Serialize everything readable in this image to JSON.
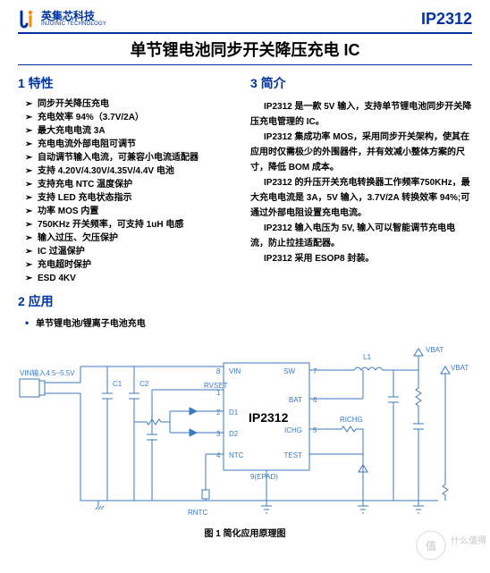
{
  "brand": {
    "cn": "英集芯科技",
    "en": "INJOINIC TECHNOLOGY",
    "color": "#0033a0"
  },
  "part_number": "IP2312",
  "title": "单节锂电池同步开关降压充电 IC",
  "sections": {
    "features_head": "1  特性",
    "applications_head": "2  应用",
    "intro_head": "3  简介"
  },
  "features": [
    "同步开关降压充电",
    "充电效率 94%（3.7V/2A）",
    "最大充电电流 3A",
    "充电电流外部电阻可调节",
    "自动调节输入电流，可兼容小电流适配器",
    "支持 4.20V/4.30V/4.35V/4.4V 电池",
    "支持充电 NTC 温度保护",
    "支持 LED 充电状态指示",
    "功率 MOS 内置",
    "750KHz 开关频率，可支持 1uH 电感",
    "输入过压、欠压保护",
    "IC 过温保护",
    "充电超时保护",
    "ESD 4KV"
  ],
  "applications": [
    "单节锂电池/锂离子电池充电"
  ],
  "intro_paragraphs": [
    "IP2312 是一款 5V 输入，支持单节锂电池同步开关降压充电管理的 IC。",
    "IP2312 集成功率 MOS，采用同步开关架构，使其在应用时仅需极少的外围器件，并有效减小整体方案的尺寸，降低 BOM 成本。",
    "IP2312 的升压开关充电转换器工作频率750KHz，最大充电电流是 3A，5V 输入，3.7V/2A 转换效率 94%;可通过外部电阻设置充电电流。",
    "IP2312 输入电压为 5V, 输入可以智能调节充电电流，防止拉挂适配器。",
    "IP2312 采用 ESOP8 封装。"
  ],
  "caption": "图 1  简化应用原理图",
  "schematic": {
    "type": "circuit-diagram",
    "stroke_color": "#3a7ac0",
    "stroke_width": 1,
    "label_fontsize": 8,
    "label_color": "#3a7ac0",
    "chip_label": "IP2312",
    "chip_label_color": "#000000",
    "pins": [
      {
        "num": "8",
        "name": "VIN",
        "side": "left-top"
      },
      {
        "num": "1",
        "name": "RVSET",
        "side": "left"
      },
      {
        "num": "2",
        "name": "D1",
        "side": "left"
      },
      {
        "num": "3",
        "name": "D2",
        "side": "left"
      },
      {
        "num": "4",
        "name": "NTC",
        "side": "left-bot"
      },
      {
        "num": "7",
        "name": "SW",
        "side": "right-top"
      },
      {
        "num": "6",
        "name": "BAT",
        "side": "right"
      },
      {
        "num": "5",
        "name": "ICHG",
        "side": "right"
      },
      {
        "num": "",
        "name": "TEST",
        "side": "right-bot"
      },
      {
        "num": "",
        "name": "9(EPAD)",
        "side": "bottom"
      }
    ],
    "components": {
      "input_label": "VIN输入\n4.5~5.5V",
      "C1": "C1",
      "C2": "C2",
      "L1": "L1",
      "RICHG": "RICHG",
      "RNTC": "RNTC",
      "VBAT1": "VBAT",
      "VBAT2": "VBAT"
    }
  },
  "watermark_text": "什么值得买",
  "colors": {
    "accent": "#0033a0",
    "schematic": "#3a7ac0",
    "text": "#000000",
    "bg": "#ffffff"
  }
}
